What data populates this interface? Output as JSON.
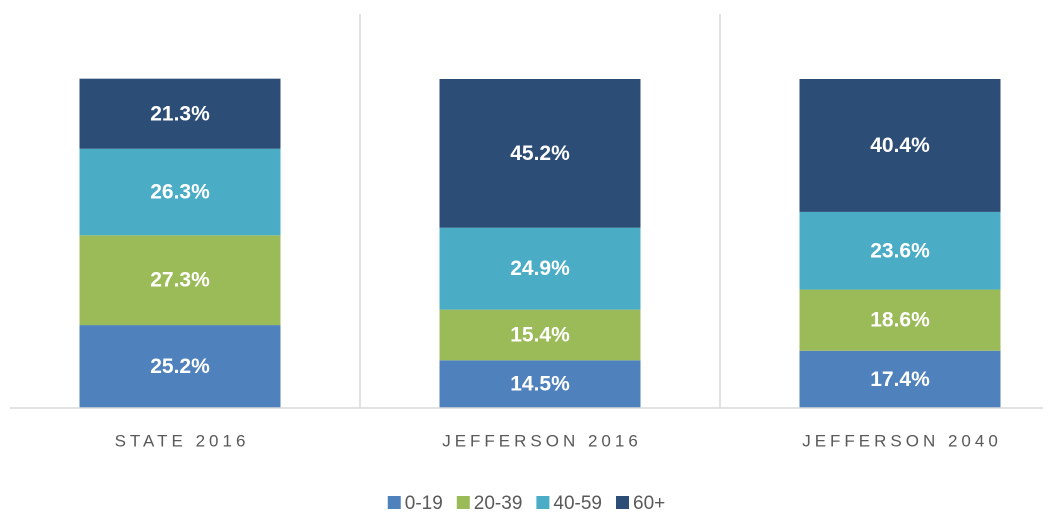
{
  "chart_data": {
    "type": "stacked_bar",
    "categories": [
      "STATE 2016",
      "JEFFERSON 2016",
      "JEFFERSON 2040"
    ],
    "series": [
      {
        "name": "0-19",
        "color": "#4f81bd",
        "values": [
          25.2,
          14.5,
          17.4
        ],
        "value_labels": [
          "25.2%",
          "14.5%",
          "17.4%"
        ]
      },
      {
        "name": "20-39",
        "color": "#9bbb59",
        "values": [
          27.3,
          15.4,
          18.6
        ],
        "value_labels": [
          "27.3%",
          "15.4%",
          "18.6%"
        ]
      },
      {
        "name": "40-59",
        "color": "#4bacc6",
        "values": [
          26.3,
          24.9,
          23.6
        ],
        "value_labels": [
          "26.3%",
          "24.9%",
          "23.6%"
        ]
      },
      {
        "name": "60+",
        "color": "#2c4d75",
        "values": [
          21.3,
          45.2,
          40.4
        ],
        "value_labels": [
          "21.3%",
          "45.2%",
          "40.4%"
        ]
      }
    ],
    "ylim": [
      0,
      100
    ],
    "legend": "bottom"
  }
}
